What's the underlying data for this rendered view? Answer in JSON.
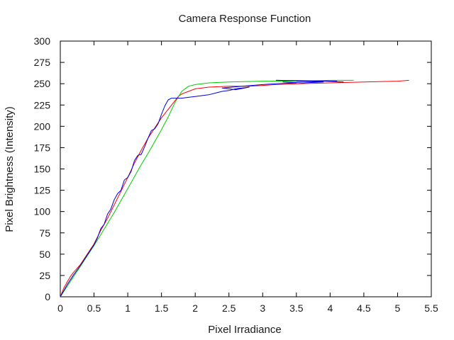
{
  "chart_data": {
    "type": "line",
    "title": "Camera Response Function",
    "xlabel": "Pixel Irradiance",
    "ylabel": "Pixel Brightness (Intensity)",
    "xlim": [
      0,
      5.5
    ],
    "ylim": [
      0,
      300
    ],
    "xticks": [
      "0",
      "0.5",
      "1",
      "1.5",
      "2",
      "2.5",
      "3",
      "3.5",
      "4",
      "4.5",
      "5",
      "5.5"
    ],
    "yticks": [
      "0",
      "25",
      "50",
      "75",
      "100",
      "125",
      "150",
      "175",
      "200",
      "225",
      "250",
      "275",
      "300"
    ],
    "grid": false,
    "legend": "none",
    "series": [
      {
        "color": "#ff0000",
        "x": [
          0,
          0.05,
          0.1,
          0.15,
          0.2,
          0.3,
          0.4,
          0.5,
          0.6,
          0.7,
          0.8,
          0.9,
          1.0,
          1.1,
          1.2,
          1.3,
          1.4,
          1.5,
          1.6,
          1.7,
          1.75,
          1.8,
          1.9,
          2.0,
          2.1,
          2.2,
          2.5,
          2.8,
          3.0,
          3.2,
          3.5,
          4.0,
          4.5,
          5.0,
          5.17
        ],
        "y": [
          0,
          10,
          17,
          24,
          29,
          38,
          50,
          62,
          78,
          92,
          108,
          124,
          140,
          157,
          172,
          186,
          198,
          210,
          220,
          230,
          235,
          238,
          241,
          244,
          245,
          246,
          247,
          247,
          248,
          249,
          250,
          251,
          252,
          253,
          254
        ]
      },
      {
        "color": "#00cc00",
        "x": [
          0,
          0.1,
          0.2,
          0.3,
          0.4,
          0.5,
          0.6,
          0.7,
          0.8,
          0.9,
          1.0,
          1.1,
          1.2,
          1.3,
          1.4,
          1.5,
          1.6,
          1.7,
          1.8,
          1.9,
          2.0,
          2.1,
          2.2,
          2.5,
          3.0,
          3.5,
          4.0,
          4.35
        ],
        "y": [
          0,
          12,
          24,
          36,
          48,
          60,
          73,
          86,
          99,
          113,
          127,
          141,
          155,
          168,
          182,
          196,
          211,
          228,
          241,
          247,
          249,
          250,
          251,
          252,
          253,
          253,
          254,
          254
        ]
      },
      {
        "color": "#0000dd",
        "x": [
          0,
          0.1,
          0.2,
          0.3,
          0.4,
          0.5,
          0.55,
          0.6,
          0.65,
          0.7,
          0.75,
          0.8,
          0.85,
          0.9,
          0.95,
          1.0,
          1.05,
          1.1,
          1.15,
          1.2,
          1.25,
          1.3,
          1.35,
          1.4,
          1.45,
          1.5,
          1.55,
          1.6,
          1.65,
          1.7,
          1.75,
          1.8,
          1.9,
          2.0,
          2.1,
          2.2,
          2.3,
          2.4,
          2.5,
          2.6,
          2.7,
          2.8,
          2.6,
          2.4,
          2.7,
          3.0,
          3.2,
          3.5,
          3.3,
          3.6,
          3.9,
          3.5,
          3.8,
          4.1,
          3.2,
          3.9,
          4.2
        ],
        "y": [
          0,
          14,
          26,
          37,
          49,
          61,
          69,
          80,
          85,
          97,
          103,
          114,
          121,
          125,
          137,
          140,
          147,
          160,
          166,
          167,
          176,
          186,
          195,
          197,
          203,
          214,
          224,
          231,
          233,
          233,
          233,
          233,
          234,
          235,
          236,
          237,
          239,
          241,
          242,
          244,
          245,
          246,
          243,
          245,
          247,
          249,
          250,
          251,
          252,
          251,
          252,
          253,
          253,
          253,
          254,
          253,
          252
        ]
      }
    ]
  }
}
